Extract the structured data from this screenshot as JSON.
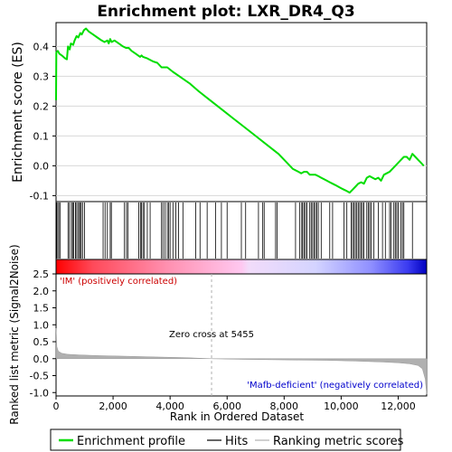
{
  "chart_data": {
    "type": "line",
    "title": "Enrichment plot: LXR_DR4_Q3",
    "panels": {
      "enrichment": {
        "ylabel": "Enrichment score (ES)",
        "ylim": [
          -0.12,
          0.48
        ],
        "yticks": [
          -0.1,
          0.0,
          0.1,
          0.2,
          0.3,
          0.4
        ],
        "ytick_labels": [
          "-0.1",
          "0.0",
          "0.1",
          "0.2",
          "0.3",
          "0.4"
        ],
        "series": [
          {
            "name": "Enrichment profile",
            "color": "#00dd00",
            "x": [
              0,
              10,
              60,
              120,
              200,
              320,
              380,
              420,
              480,
              520,
              600,
              650,
              720,
              780,
              850,
              900,
              980,
              1050,
              1150,
              1300,
              1450,
              1600,
              1700,
              1800,
              1850,
              1900,
              1950,
              2050,
              2200,
              2350,
              2450,
              2550,
              2650,
              2800,
              2950,
              3000,
              3050,
              3200,
              3400,
              3550,
              3700,
              3800,
              3900,
              4100,
              4400,
              4700,
              5000,
              5400,
              5800,
              6200,
              6600,
              7000,
              7400,
              7800,
              8100,
              8300,
              8500,
              8600,
              8700,
              8800,
              8900,
              9000,
              9100,
              9200,
              9300,
              9400,
              9500,
              9600,
              9700,
              9800,
              9900,
              10000,
              10100,
              10200,
              10300,
              10400,
              10500,
              10600,
              10700,
              10800,
              10900,
              11000,
              11100,
              11200,
              11300,
              11400,
              11500,
              11600,
              11700,
              11800,
              11900,
              12000,
              12100,
              12200,
              12300,
              12400,
              12500,
              12600,
              12700,
              12800,
              12900
            ],
            "y": [
              0.22,
              0.38,
              0.385,
              0.375,
              0.37,
              0.36,
              0.357,
              0.4,
              0.39,
              0.41,
              0.405,
              0.42,
              0.435,
              0.43,
              0.445,
              0.44,
              0.455,
              0.46,
              0.45,
              0.44,
              0.43,
              0.42,
              0.415,
              0.42,
              0.41,
              0.425,
              0.415,
              0.42,
              0.41,
              0.4,
              0.395,
              0.395,
              0.385,
              0.375,
              0.365,
              0.37,
              0.365,
              0.36,
              0.35,
              0.345,
              0.33,
              0.33,
              0.33,
              0.315,
              0.295,
              0.275,
              0.25,
              0.22,
              0.19,
              0.16,
              0.13,
              0.1,
              0.07,
              0.04,
              0.01,
              -0.01,
              -0.02,
              -0.025,
              -0.02,
              -0.02,
              -0.03,
              -0.03,
              -0.03,
              -0.035,
              -0.04,
              -0.045,
              -0.05,
              -0.055,
              -0.06,
              -0.065,
              -0.07,
              -0.075,
              -0.08,
              -0.085,
              -0.09,
              -0.08,
              -0.07,
              -0.06,
              -0.055,
              -0.06,
              -0.04,
              -0.035,
              -0.04,
              -0.045,
              -0.04,
              -0.05,
              -0.03,
              -0.025,
              -0.02,
              -0.01,
              0.0,
              0.01,
              0.02,
              0.03,
              0.03,
              0.02,
              0.04,
              0.03,
              0.02,
              0.01,
              0.0
            ]
          }
        ],
        "hits_label": "Hits",
        "hits": [
          20,
          60,
          100,
          150,
          420,
          470,
          540,
          580,
          620,
          680,
          700,
          760,
          800,
          850,
          880,
          930,
          1000,
          1650,
          1720,
          1800,
          1900,
          1940,
          2400,
          2470,
          2520,
          2900,
          2960,
          3000,
          3050,
          3100,
          3200,
          3300,
          3700,
          3750,
          3820,
          3900,
          3950,
          4000,
          4100,
          4200,
          4300,
          4450,
          4900,
          5050,
          5300,
          5600,
          5800,
          6000,
          6500,
          6650,
          7100,
          7250,
          7300,
          7700,
          7750,
          8400,
          8550,
          8620,
          8650,
          8700,
          8750,
          8800,
          8900,
          8950,
          9000,
          9050,
          9100,
          9150,
          9200,
          9300,
          9600,
          9700,
          10100,
          10200,
          10350,
          10400,
          10450,
          10500,
          10550,
          10600,
          10650,
          10700,
          10750,
          10800,
          10900,
          10950,
          11000,
          11050,
          11150,
          11300,
          11450,
          11550,
          11700,
          11750,
          11850,
          11900,
          11950,
          12000,
          12100,
          12150,
          12200,
          12500
        ]
      },
      "ranked_metric": {
        "ylabel": "Ranked list metric (Signal2Noise)",
        "xlabel": "Rank in Ordered Dataset",
        "ylim": [
          -1.1,
          2.5
        ],
        "yticks": [
          -1.0,
          -0.5,
          0.0,
          0.5,
          1.0,
          1.5,
          2.0,
          2.5
        ],
        "ytick_labels": [
          "-1.0",
          "-0.5",
          "0.0",
          "0.5",
          "1.0",
          "1.5",
          "2.0",
          "2.5"
        ],
        "xlim": [
          0,
          13000
        ],
        "xticks": [
          0,
          2000,
          4000,
          6000,
          8000,
          10000,
          12000
        ],
        "xtick_labels": [
          "0",
          "2,000",
          "4,000",
          "6,000",
          "8,000",
          "10,000",
          "12,000"
        ],
        "series": [
          {
            "name": "Ranking metric scores",
            "color": "#b0b0b0",
            "x": [
              0,
              30,
              80,
              200,
              400,
              800,
              1500,
              2500,
              3500,
              4500,
              5455,
              6500,
              7500,
              8500,
              9500,
              10500,
              11500,
              12000,
              12400,
              12700,
              12850,
              12950,
              13000
            ],
            "y": [
              0.9,
              0.35,
              0.22,
              0.16,
              0.13,
              0.11,
              0.09,
              0.07,
              0.05,
              0.03,
              0.0,
              -0.02,
              -0.03,
              -0.04,
              -0.05,
              -0.07,
              -0.1,
              -0.12,
              -0.15,
              -0.2,
              -0.3,
              -0.6,
              -1.05
            ]
          }
        ],
        "zero_cross_label": "Zero cross at 5455",
        "zero_cross": 5455,
        "positive_label": "'IM' (positively correlated)",
        "negative_label": "'Mafb-deficient' (negatively correlated)"
      }
    },
    "legend": {
      "placement": "bottom",
      "entries": [
        {
          "label": "Enrichment profile",
          "color": "#00dd00"
        },
        {
          "label": "Hits",
          "color": "#000000"
        },
        {
          "label": "Ranking metric scores",
          "color": "#b0b0b0"
        }
      ]
    }
  }
}
